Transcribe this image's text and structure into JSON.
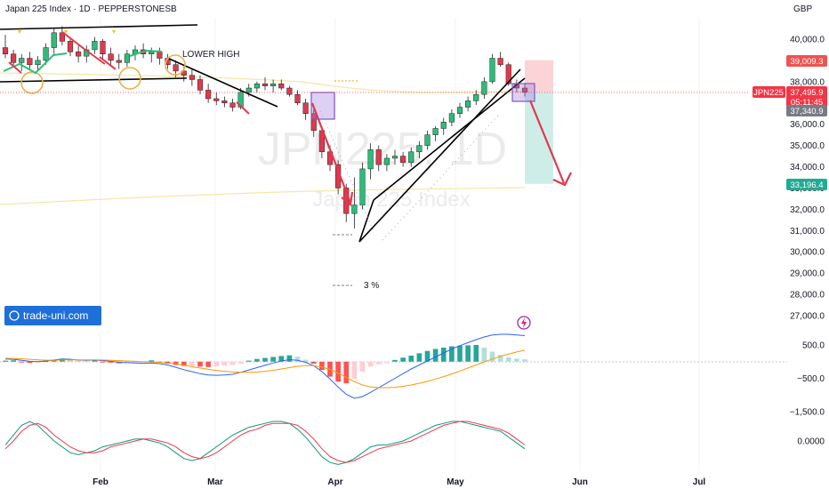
{
  "header": {
    "title": "Japan 225 Index · 1D · PEPPERSTONESB",
    "currency": "GBP"
  },
  "watermark": {
    "symbol": "JPN225, 1D",
    "name": "Japan 225 Index"
  },
  "annotations": {
    "lower_high": "LOWER HIGH",
    "percent": "3 %"
  },
  "logo": {
    "text": "trade-uni.com"
  },
  "badges": {
    "target": "39,009.3",
    "symbol": "JPN225",
    "price": "37,495.9",
    "countdown": "05:11:45",
    "prev": "37,340.9",
    "stop": "33,196.4"
  },
  "colors": {
    "up": "#2dbd7a",
    "down": "#e0394e",
    "target_badge": "#ef5350",
    "price_badge": "#f23645",
    "prev_badge": "#787b86",
    "stop_badge": "#22ab94",
    "trendline": "#000000",
    "arrow": "#e0394e",
    "macd": "#2962ff",
    "signal": "#ff9800",
    "osc_fast": "#089981",
    "osc_slow": "#f23645"
  },
  "chart_data": [
    {
      "type": "candlestick",
      "title": "Japan 225 Index · 1D · PEPPERSTONESB",
      "x_ticks": [
        "Feb",
        "Mar",
        "Apr",
        "May",
        "Jun",
        "Jul"
      ],
      "y_ticks": [
        "40,000.0",
        "39,000.0",
        "38,000.0",
        "37,000.0",
        "36,000.0",
        "35,000.0",
        "34,000.0",
        "33,000.0",
        "32,000.0",
        "31,000.0",
        "30,000.0",
        "29,000.0",
        "28,000.0",
        "27,000.0"
      ],
      "ylim": [
        26600,
        41500
      ],
      "ohlc": [
        [
          39600,
          40200,
          39100,
          39300
        ],
        [
          39300,
          39500,
          38700,
          38900
        ],
        [
          38900,
          39300,
          38500,
          39100
        ],
        [
          39100,
          39400,
          38600,
          38800
        ],
        [
          38800,
          39200,
          38500,
          39000
        ],
        [
          39000,
          39800,
          38800,
          39600
        ],
        [
          39600,
          40500,
          39300,
          40300
        ],
        [
          40300,
          40600,
          39700,
          39900
        ],
        [
          39900,
          40100,
          39200,
          39400
        ],
        [
          39400,
          39700,
          38900,
          39200
        ],
        [
          39200,
          39700,
          38900,
          39500
        ],
        [
          39500,
          40100,
          39300,
          39900
        ],
        [
          39900,
          40000,
          39100,
          39300
        ],
        [
          39300,
          39600,
          38800,
          39000
        ],
        [
          39000,
          39300,
          38600,
          38900
        ],
        [
          38900,
          39500,
          38700,
          39300
        ],
        [
          39300,
          39700,
          39000,
          39500
        ],
        [
          39500,
          39800,
          39100,
          39300
        ],
        [
          39300,
          39600,
          38900,
          39400
        ],
        [
          39400,
          39600,
          38800,
          39100
        ],
        [
          39100,
          39300,
          38600,
          38800
        ],
        [
          38800,
          39000,
          38200,
          38500
        ],
        [
          38500,
          38700,
          38000,
          38300
        ],
        [
          38300,
          38600,
          37800,
          38100
        ],
        [
          38100,
          38300,
          37400,
          37600
        ],
        [
          37600,
          37900,
          37000,
          37200
        ],
        [
          37200,
          37500,
          36900,
          37100
        ],
        [
          37100,
          37300,
          36800,
          37000
        ],
        [
          37000,
          37200,
          36600,
          36800
        ],
        [
          36800,
          37700,
          36700,
          37500
        ],
        [
          37500,
          37900,
          37300,
          37700
        ],
        [
          37700,
          38000,
          37500,
          37900
        ],
        [
          37900,
          38200,
          37600,
          37800
        ],
        [
          37800,
          38100,
          37500,
          37900
        ],
        [
          37900,
          38100,
          37600,
          37700
        ],
        [
          37700,
          37800,
          37300,
          37400
        ],
        [
          37400,
          37600,
          36900,
          37000
        ],
        [
          37000,
          37200,
          36200,
          36500
        ],
        [
          36500,
          36700,
          35400,
          35700
        ],
        [
          35700,
          35900,
          34400,
          34700
        ],
        [
          34700,
          35000,
          33800,
          34100
        ],
        [
          34100,
          34300,
          32700,
          33000
        ],
        [
          33000,
          33200,
          31400,
          31800
        ],
        [
          31800,
          33500,
          31100,
          32200
        ],
        [
          32200,
          34200,
          32000,
          33900
        ],
        [
          33900,
          35100,
          33400,
          34800
        ],
        [
          34800,
          35000,
          33800,
          34100
        ],
        [
          34100,
          34600,
          33800,
          34400
        ],
        [
          34400,
          34800,
          34100,
          34500
        ],
        [
          34500,
          34700,
          34000,
          34200
        ],
        [
          34200,
          34900,
          34000,
          34700
        ],
        [
          34700,
          35200,
          34400,
          35000
        ],
        [
          35000,
          35700,
          34800,
          35500
        ],
        [
          35500,
          35900,
          35200,
          35800
        ],
        [
          35800,
          36300,
          35500,
          36100
        ],
        [
          36100,
          36700,
          35900,
          36500
        ],
        [
          36500,
          37000,
          36300,
          36800
        ],
        [
          36800,
          37300,
          36600,
          37100
        ],
        [
          37100,
          37600,
          36900,
          37400
        ],
        [
          37400,
          38200,
          37200,
          38000
        ],
        [
          38000,
          39300,
          37900,
          39100
        ],
        [
          39100,
          39400,
          38700,
          38800
        ],
        [
          38800,
          38900,
          37800,
          37900
        ],
        [
          37900,
          38100,
          37500,
          37700
        ],
        [
          37700,
          37900,
          37300,
          37500
        ]
      ],
      "target_zone": [
        37500,
        39009.3
      ],
      "stop_zone": [
        33196.4,
        37500
      ]
    },
    {
      "type": "histogram+line",
      "title": "MACD",
      "y_ticks": [
        "500.0",
        "−500.0",
        "−1,500.0"
      ],
      "ylim": [
        -1800,
        800
      ],
      "histogram": [
        30,
        40,
        -20,
        -40,
        -30,
        20,
        60,
        80,
        50,
        30,
        20,
        40,
        -10,
        -30,
        -50,
        -40,
        -30,
        -20,
        40,
        -20,
        -60,
        -100,
        -130,
        -120,
        -150,
        -160,
        -140,
        -120,
        -100,
        -60,
        30,
        80,
        110,
        140,
        170,
        190,
        150,
        60,
        -60,
        -250,
        -450,
        -600,
        -650,
        -520,
        -300,
        -150,
        -80,
        -40,
        50,
        120,
        180,
        250,
        320,
        380,
        420,
        460,
        480,
        490,
        500,
        420,
        300,
        200,
        130,
        90,
        70
      ],
      "macd": [
        80,
        70,
        40,
        10,
        0,
        20,
        50,
        80,
        70,
        50,
        40,
        50,
        30,
        10,
        -20,
        -30,
        -40,
        -50,
        -40,
        -60,
        -100,
        -170,
        -240,
        -300,
        -360,
        -400,
        -410,
        -400,
        -380,
        -320,
        -250,
        -180,
        -110,
        -40,
        20,
        60,
        40,
        -20,
        -120,
        -300,
        -520,
        -760,
        -980,
        -1100,
        -1050,
        -920,
        -780,
        -640,
        -500,
        -360,
        -220,
        -100,
        20,
        140,
        260,
        380,
        480,
        570,
        660,
        740,
        800,
        820,
        820,
        800,
        780
      ],
      "signal": [
        100,
        95,
        85,
        70,
        55,
        45,
        45,
        50,
        55,
        55,
        55,
        55,
        50,
        40,
        30,
        20,
        10,
        0,
        -10,
        -20,
        -40,
        -70,
        -110,
        -150,
        -190,
        -230,
        -265,
        -290,
        -310,
        -320,
        -320,
        -310,
        -290,
        -260,
        -220,
        -180,
        -140,
        -120,
        -120,
        -160,
        -230,
        -340,
        -470,
        -600,
        -700,
        -760,
        -780,
        -780,
        -770,
        -740,
        -700,
        -650,
        -590,
        -520,
        -450,
        -370,
        -280,
        -190,
        -100,
        -10,
        80,
        160,
        230,
        290,
        340
      ]
    },
    {
      "type": "line",
      "title": "Oscillator",
      "y_ticks": [
        "0.0000"
      ],
      "ylim": [
        -1.3,
        1.3
      ],
      "fast": [
        -0.2,
        0.3,
        0.8,
        1.0,
        0.8,
        0.4,
        0.0,
        -0.3,
        -0.6,
        -0.7,
        -0.6,
        -0.5,
        -0.3,
        -0.2,
        -0.1,
        0.0,
        0.1,
        0.1,
        0.0,
        -0.1,
        -0.3,
        -0.6,
        -0.9,
        -1.0,
        -0.9,
        -0.6,
        -0.3,
        0.0,
        0.3,
        0.5,
        0.7,
        0.8,
        0.9,
        1.0,
        1.0,
        0.9,
        0.6,
        0.2,
        -0.3,
        -0.8,
        -1.1,
        -1.2,
        -1.1,
        -0.9,
        -0.6,
        -0.3,
        -0.2,
        -0.2,
        -0.1,
        0.0,
        0.2,
        0.4,
        0.6,
        0.8,
        0.9,
        1.0,
        1.0,
        0.9,
        0.8,
        0.7,
        0.6,
        0.5,
        0.2,
        -0.1,
        -0.4
      ],
      "slow": [
        -0.4,
        0.0,
        0.5,
        0.8,
        0.9,
        0.7,
        0.3,
        0.0,
        -0.3,
        -0.5,
        -0.6,
        -0.6,
        -0.5,
        -0.3,
        -0.2,
        -0.1,
        0.0,
        0.1,
        0.1,
        0.0,
        -0.1,
        -0.3,
        -0.6,
        -0.8,
        -0.9,
        -0.8,
        -0.6,
        -0.3,
        0.0,
        0.3,
        0.5,
        0.6,
        0.8,
        0.9,
        0.9,
        0.9,
        0.8,
        0.5,
        0.1,
        -0.4,
        -0.8,
        -1.0,
        -1.1,
        -1.0,
        -0.8,
        -0.6,
        -0.4,
        -0.3,
        -0.2,
        -0.1,
        0.0,
        0.2,
        0.4,
        0.6,
        0.8,
        0.9,
        1.0,
        1.0,
        0.9,
        0.8,
        0.7,
        0.6,
        0.4,
        0.1,
        -0.2
      ]
    }
  ]
}
